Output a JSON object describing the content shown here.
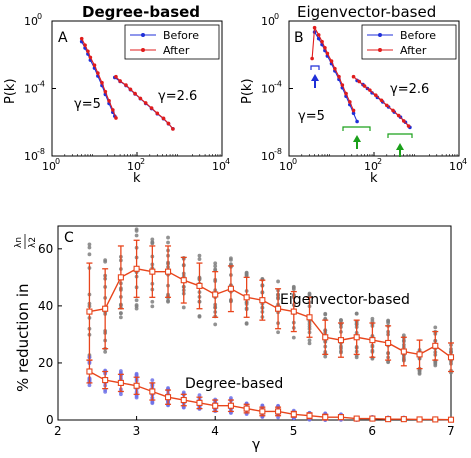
{
  "colors": {
    "before": "#1f2fd8",
    "after": "#e01c1c",
    "arrow_blue": "#1f2fd8",
    "arrow_green": "#1aa01a",
    "scatter_gray": "#7f7f7f",
    "scatter_blue": "#6f72e8",
    "line_orange": "#e8451c"
  },
  "chart_data": [
    {
      "type": "line",
      "panel": "A",
      "title": "Degree-based",
      "xlabel": "k",
      "ylabel": "P(k)",
      "xscale": "log",
      "yscale": "log",
      "xlim": [
        1,
        10000
      ],
      "ylim": [
        1e-08,
        1
      ],
      "xticks": [
        "10^0",
        "10^2",
        "10^4"
      ],
      "yticks": [
        "10^0",
        "10^-4",
        "10^-8"
      ],
      "legend": {
        "placement": "top-right",
        "entries": [
          "Before",
          "After"
        ]
      },
      "annotations": [
        "γ=5",
        "γ=2.6"
      ],
      "series": [
        {
          "name": "Before",
          "x": [
            5,
            6,
            7,
            8,
            10,
            12,
            15,
            18,
            22,
            27,
            30
          ],
          "y": [
            0.0601,
            0.0251,
            0.0111,
            0.00481,
            0.00161,
            0.000551,
            0.000151,
            4.51e-05,
            1.31e-05,
            3.91e-06,
            2.31e-06
          ]
        },
        {
          "name": "Before",
          "x": [
            30,
            40,
            55,
            70,
            90,
            120,
            160,
            220,
            300,
            420,
            550,
            700
          ],
          "y": [
            0.000451,
            0.000261,
            0.000151,
            8.51e-05,
            4.71e-05,
            2.51e-05,
            1.31e-05,
            6.51e-06,
            3.21e-06,
            1.61e-06,
            8.1e-07,
            4.1e-07
          ]
        },
        {
          "name": "After",
          "x": [
            5,
            6,
            7,
            8,
            10,
            12,
            15,
            18,
            22,
            27,
            32
          ],
          "y": [
            0.09,
            0.037,
            0.016,
            0.007,
            0.0024,
            0.00082,
            0.00022,
            6.5e-05,
            1.86e-05,
            5.4e-06,
            1.8e-06
          ]
        },
        {
          "name": "After",
          "x": [
            32,
            40,
            55,
            70,
            90,
            120,
            160,
            220,
            300,
            420,
            550,
            700
          ],
          "y": [
            0.0005,
            0.00028,
            0.00016,
            9e-05,
            5e-05,
            2.6e-05,
            1.4e-05,
            7e-06,
            3.4e-06,
            1.7e-06,
            8.5e-07,
            4e-07
          ]
        }
      ]
    },
    {
      "type": "line",
      "panel": "B",
      "title": "Eigenvector-based",
      "xlabel": "k",
      "ylabel": "P(k)",
      "xscale": "log",
      "yscale": "log",
      "xlim": [
        1,
        10000
      ],
      "ylim": [
        1e-08,
        1
      ],
      "xticks": [
        "10^0",
        "10^2",
        "10^4"
      ],
      "yticks": [
        "10^0",
        "10^-4",
        "10^-8"
      ],
      "legend": {
        "placement": "top-right",
        "entries": [
          "Before",
          "After"
        ]
      },
      "annotations": [
        "γ=5",
        "γ=2.6"
      ],
      "series": [
        {
          "name": "Before",
          "x": [
            4,
            5,
            6,
            7,
            8,
            10,
            12,
            15,
            18,
            22,
            27,
            33,
            40
          ],
          "y": [
            0.22,
            0.09,
            0.04,
            0.018,
            0.0085,
            0.003,
            0.0011,
            0.00035,
            0.00011,
            3.5e-05,
            1.1e-05,
            3.4e-06,
            1.1e-06
          ]
        },
        {
          "name": "Before",
          "x": [
            40,
            55,
            70,
            90,
            120,
            160,
            220,
            300,
            420,
            550,
            700
          ],
          "y": [
            0.0003,
            0.00017,
            0.0001,
            5.5e-05,
            3e-05,
            1.6e-05,
            8e-06,
            4e-06,
            2e-06,
            1e-06,
            5e-07
          ]
        },
        {
          "name": "After",
          "x": [
            3.5,
            4,
            5,
            6,
            7,
            8,
            10,
            12,
            15,
            18,
            22,
            27,
            33
          ],
          "y": [
            0.006,
            0.4,
            0.15,
            0.06,
            0.026,
            0.012,
            0.0042,
            0.0015,
            0.0005,
            0.00016,
            5e-05,
            1.6e-05,
            5e-06
          ]
        },
        {
          "name": "After",
          "x": [
            33,
            45,
            60,
            80,
            110,
            150,
            200,
            280,
            380,
            500,
            650
          ],
          "y": [
            0.0005,
            0.00026,
            0.00014,
            8e-05,
            4e-05,
            2e-05,
            1e-05,
            5e-06,
            2.5e-06,
            1.2e-06,
            6e-07
          ]
        }
      ]
    },
    {
      "type": "line",
      "panel": "C",
      "xlabel": "γ",
      "ylabel": "% reduction in λn/λ2",
      "xlim": [
        2,
        7
      ],
      "ylim": [
        0,
        68
      ],
      "xticks": [
        2,
        3,
        4,
        5,
        6,
        7
      ],
      "yticks": [
        0,
        20,
        40,
        60
      ],
      "annotations": [
        "Eigenvector-based",
        "Degree-based"
      ],
      "series": [
        {
          "name": "Eigenvector-based",
          "x": [
            2.4,
            2.6,
            2.8,
            3.0,
            3.2,
            3.4,
            3.6,
            3.8,
            4.0,
            4.2,
            4.4,
            4.6,
            4.8,
            5.0,
            5.2,
            5.4,
            5.6,
            5.8,
            6.0,
            6.2,
            6.4,
            6.6,
            6.8,
            7.0
          ],
          "y": [
            38,
            39,
            50,
            53,
            52,
            52,
            49,
            47,
            44,
            46,
            43,
            42,
            39,
            38,
            36,
            29,
            28,
            29,
            28,
            27,
            24,
            23,
            26,
            22
          ],
          "err": [
            17,
            14,
            11,
            10,
            9,
            9,
            8,
            8,
            8,
            8,
            7,
            7,
            7,
            7,
            7,
            6,
            6,
            6,
            6,
            6,
            5,
            5,
            5,
            5
          ]
        },
        {
          "name": "Degree-based",
          "x": [
            2.4,
            2.6,
            2.8,
            3.0,
            3.2,
            3.4,
            3.6,
            3.8,
            4.0,
            4.2,
            4.4,
            4.6,
            4.8,
            5.0,
            5.2,
            5.4,
            5.6,
            5.8,
            6.0,
            6.2,
            6.4,
            6.6,
            6.8,
            7.0
          ],
          "y": [
            17,
            14,
            13,
            12,
            10,
            8,
            7,
            6,
            5,
            5,
            4,
            3,
            3,
            2,
            1.5,
            1,
            1,
            0.5,
            0.5,
            0.3,
            0.3,
            0.2,
            0.2,
            0.1
          ],
          "err": [
            4,
            3,
            3,
            3,
            3,
            2.5,
            2,
            2,
            2,
            2,
            1.5,
            1.5,
            1.5,
            1,
            1,
            1,
            0.8,
            0.5,
            0.5,
            0.4,
            0.4,
            0.3,
            0.3,
            0.2
          ]
        }
      ]
    }
  ],
  "labels": {
    "panelA": {
      "letter": "A",
      "title": "Degree-based",
      "xlabel": "k",
      "ylabel": "P(k)",
      "gamma_left": "γ=5",
      "gamma_right": "γ=2.6",
      "legend_before": "Before",
      "legend_after": "After"
    },
    "panelB": {
      "letter": "B",
      "title": "Eigenvector-based",
      "xlabel": "k",
      "ylabel": "P(k)",
      "gamma_left": "γ=5",
      "gamma_right": "γ=2.6",
      "legend_before": "Before",
      "legend_after": "After"
    },
    "panelC": {
      "letter": "C",
      "xlabel": "γ",
      "ylabel_prefix": "% reduction in ",
      "frac_num": "λn",
      "frac_den": "λ2",
      "label_eig": "Eigenvector-based",
      "label_deg": "Degree-based"
    },
    "logticks": {
      "base": "10",
      "e0": "0",
      "e2": "2",
      "e4": "4",
      "em4": "-4",
      "em8": "-8"
    }
  }
}
